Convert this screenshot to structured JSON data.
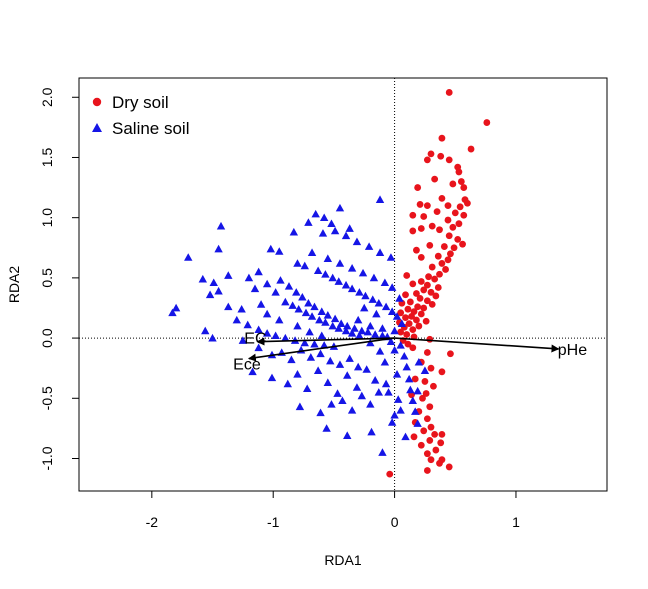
{
  "chart_data": {
    "type": "scatter",
    "xlabel": "RDA1",
    "ylabel": "RDA2",
    "xlim": [
      -2.6,
      1.75
    ],
    "ylim": [
      -1.27,
      2.16
    ],
    "xticks": [
      -2,
      -1,
      0,
      1
    ],
    "yticks": [
      -1.0,
      -0.5,
      0.0,
      0.5,
      1.0,
      1.5,
      2.0
    ],
    "xtick_labels": [
      "-2",
      "-1",
      "0",
      "1"
    ],
    "ytick_labels": [
      "-1.0",
      "-0.5",
      "0.0",
      "0.5",
      "1.0",
      "1.5",
      "2.0"
    ],
    "reference_lines": {
      "x": 0,
      "y": 0,
      "style": "dotted"
    },
    "legend": {
      "position": "top-left",
      "entries": [
        {
          "label": "Dry soil",
          "marker": "circle",
          "color": "#e8141c"
        },
        {
          "label": "Saline soil",
          "marker": "triangle",
          "color": "#1515e6"
        }
      ]
    },
    "series": [
      {
        "name": "Dry soil",
        "marker": "circle",
        "color": "#e8141c",
        "points": [
          [
            0.45,
            2.04
          ],
          [
            0.76,
            1.79
          ],
          [
            0.39,
            1.66
          ],
          [
            0.63,
            1.57
          ],
          [
            0.3,
            1.53
          ],
          [
            0.38,
            1.51
          ],
          [
            0.27,
            1.48
          ],
          [
            0.45,
            1.48
          ],
          [
            0.52,
            1.42
          ],
          [
            0.53,
            1.38
          ],
          [
            0.33,
            1.32
          ],
          [
            0.55,
            1.3
          ],
          [
            0.48,
            1.28
          ],
          [
            0.57,
            1.25
          ],
          [
            0.19,
            1.25
          ],
          [
            0.39,
            1.16
          ],
          [
            0.58,
            1.15
          ],
          [
            0.6,
            1.12
          ],
          [
            0.21,
            1.11
          ],
          [
            0.27,
            1.1
          ],
          [
            0.44,
            1.1
          ],
          [
            0.54,
            1.09
          ],
          [
            0.35,
            1.05
          ],
          [
            0.5,
            1.04
          ],
          [
            0.57,
            1.02
          ],
          [
            0.15,
            1.02
          ],
          [
            0.24,
            1.01
          ],
          [
            0.44,
            0.98
          ],
          [
            0.53,
            0.95
          ],
          [
            0.31,
            0.93
          ],
          [
            0.48,
            0.92
          ],
          [
            0.22,
            0.91
          ],
          [
            0.37,
            0.9
          ],
          [
            0.15,
            0.89
          ],
          [
            0.45,
            0.85
          ],
          [
            0.52,
            0.82
          ],
          [
            0.56,
            0.78
          ],
          [
            0.29,
            0.77
          ],
          [
            0.41,
            0.76
          ],
          [
            0.49,
            0.75
          ],
          [
            0.18,
            0.73
          ],
          [
            0.46,
            0.7
          ],
          [
            0.36,
            0.68
          ],
          [
            0.22,
            0.67
          ],
          [
            0.44,
            0.65
          ],
          [
            0.39,
            0.62
          ],
          [
            0.31,
            0.59
          ],
          [
            0.42,
            0.57
          ],
          [
            0.37,
            0.53
          ],
          [
            0.28,
            0.51
          ],
          [
            0.33,
            0.49
          ],
          [
            0.22,
            0.47
          ],
          [
            0.15,
            0.45
          ],
          [
            0.27,
            0.44
          ],
          [
            0.36,
            0.42
          ],
          [
            0.24,
            0.4
          ],
          [
            0.3,
            0.38
          ],
          [
            0.18,
            0.37
          ],
          [
            0.09,
            0.36
          ],
          [
            0.34,
            0.35
          ],
          [
            0.21,
            0.33
          ],
          [
            0.27,
            0.31
          ],
          [
            0.13,
            0.3
          ],
          [
            0.06,
            0.29
          ],
          [
            0.31,
            0.28
          ],
          [
            0.19,
            0.26
          ],
          [
            0.24,
            0.25
          ],
          [
            0.11,
            0.24
          ],
          [
            0.16,
            0.22
          ],
          [
            0.05,
            0.21
          ],
          [
            0.22,
            0.2
          ],
          [
            0.14,
            0.18
          ],
          [
            0.09,
            0.17
          ],
          [
            0.18,
            0.15
          ],
          [
            0.26,
            0.14
          ],
          [
            0.04,
            0.13
          ],
          [
            0.12,
            0.12
          ],
          [
            0.2,
            0.1
          ],
          [
            0.08,
            0.09
          ],
          [
            0.15,
            0.07
          ],
          [
            0.05,
            0.05
          ],
          [
            0.1,
            0.03
          ],
          [
            0.16,
            0.01
          ],
          [
            0.07,
            -0.02
          ],
          [
            0.11,
            -0.05
          ],
          [
            0.15,
            -0.08
          ],
          [
            0.27,
            -0.12
          ],
          [
            0.46,
            -0.13
          ],
          [
            0.22,
            -0.2
          ],
          [
            0.3,
            -0.25
          ],
          [
            0.39,
            -0.28
          ],
          [
            0.17,
            -0.34
          ],
          [
            0.25,
            -0.36
          ],
          [
            0.32,
            -0.4
          ],
          [
            0.14,
            -0.47
          ],
          [
            0.23,
            -0.5
          ],
          [
            0.29,
            -0.57
          ],
          [
            0.2,
            -0.61
          ],
          [
            0.27,
            -0.67
          ],
          [
            0.17,
            -0.7
          ],
          [
            0.3,
            -0.74
          ],
          [
            0.24,
            -0.77
          ],
          [
            0.33,
            -0.8
          ],
          [
            0.16,
            -0.82
          ],
          [
            0.29,
            -0.85
          ],
          [
            0.38,
            -0.87
          ],
          [
            0.22,
            -0.89
          ],
          [
            0.34,
            -0.93
          ],
          [
            0.27,
            -0.96
          ],
          [
            0.39,
            -1.01
          ],
          [
            0.37,
            -1.04
          ],
          [
            0.45,
            -1.07
          ],
          [
            0.3,
            -1.01
          ],
          [
            0.27,
            -1.1
          ],
          [
            -0.04,
            -1.13
          ],
          [
            0.39,
            -0.8
          ],
          [
            0.26,
            -0.46
          ],
          [
            0.29,
            -0.01
          ],
          [
            0.1,
            0.52
          ]
        ]
      },
      {
        "name": "Saline soil",
        "marker": "triangle",
        "color": "#1515e6",
        "points": [
          [
            -1.7,
            0.67
          ],
          [
            -1.43,
            0.93
          ],
          [
            -1.8,
            0.25
          ],
          [
            -1.83,
            0.21
          ],
          [
            -1.58,
            0.49
          ],
          [
            -1.49,
            0.46
          ],
          [
            -1.52,
            0.36
          ],
          [
            -1.37,
            0.52
          ],
          [
            -1.45,
            0.39
          ],
          [
            -1.37,
            0.26
          ],
          [
            -1.26,
            0.24
          ],
          [
            -1.56,
            0.06
          ],
          [
            -1.5,
            0.0
          ],
          [
            -1.45,
            0.74
          ],
          [
            -1.2,
            0.5
          ],
          [
            -1.15,
            0.41
          ],
          [
            -1.12,
            0.55
          ],
          [
            -1.05,
            0.45
          ],
          [
            -0.98,
            0.38
          ],
          [
            -0.94,
            0.48
          ],
          [
            -0.87,
            0.43
          ],
          [
            -0.81,
            0.38
          ],
          [
            -0.76,
            0.34
          ],
          [
            -0.71,
            0.29
          ],
          [
            -0.66,
            0.26
          ],
          [
            -0.6,
            0.22
          ],
          [
            -0.55,
            0.19
          ],
          [
            -0.49,
            0.16
          ],
          [
            -0.44,
            0.12
          ],
          [
            -0.39,
            0.1
          ],
          [
            -0.33,
            0.08
          ],
          [
            -0.27,
            0.06
          ],
          [
            -0.22,
            0.05
          ],
          [
            -0.16,
            0.03
          ],
          [
            -0.1,
            0.02
          ],
          [
            -0.06,
            0.01
          ],
          [
            -1.02,
            0.74
          ],
          [
            -0.95,
            0.72
          ],
          [
            -0.83,
            0.88
          ],
          [
            -0.71,
            0.96
          ],
          [
            -0.68,
            0.71
          ],
          [
            -0.59,
            0.87
          ],
          [
            -0.55,
            0.66
          ],
          [
            -0.49,
            0.89
          ],
          [
            -0.45,
            0.62
          ],
          [
            -0.4,
            0.85
          ],
          [
            -0.35,
            0.58
          ],
          [
            -0.31,
            0.8
          ],
          [
            -0.26,
            0.54
          ],
          [
            -0.21,
            0.76
          ],
          [
            -0.17,
            0.5
          ],
          [
            -0.12,
            0.71
          ],
          [
            -0.08,
            0.46
          ],
          [
            -0.03,
            0.67
          ],
          [
            -0.65,
            1.03
          ],
          [
            -0.58,
            1.0
          ],
          [
            -0.52,
            0.95
          ],
          [
            -0.45,
            1.08
          ],
          [
            -0.37,
            0.91
          ],
          [
            -0.12,
            1.15
          ],
          [
            -0.8,
            0.62
          ],
          [
            -0.74,
            0.6
          ],
          [
            -0.63,
            0.56
          ],
          [
            -0.57,
            0.53
          ],
          [
            -0.51,
            0.5
          ],
          [
            -0.46,
            0.47
          ],
          [
            -0.4,
            0.44
          ],
          [
            -0.35,
            0.41
          ],
          [
            -0.29,
            0.38
          ],
          [
            -0.24,
            0.35
          ],
          [
            -0.18,
            0.32
          ],
          [
            -0.13,
            0.29
          ],
          [
            -0.07,
            0.26
          ],
          [
            -0.02,
            0.22
          ],
          [
            -0.02,
            0.42
          ],
          [
            0.04,
            0.33
          ],
          [
            0.02,
            0.18
          ],
          [
            0.06,
            0.12
          ],
          [
            -0.9,
            0.3
          ],
          [
            -0.84,
            0.27
          ],
          [
            -0.79,
            0.24
          ],
          [
            -0.73,
            0.21
          ],
          [
            -0.68,
            0.18
          ],
          [
            -0.62,
            0.15
          ],
          [
            -0.57,
            0.13
          ],
          [
            -0.51,
            0.1
          ],
          [
            -0.46,
            0.08
          ],
          [
            -0.4,
            0.06
          ],
          [
            -0.35,
            0.04
          ],
          [
            -0.29,
            0.02
          ],
          [
            -1.3,
            0.15
          ],
          [
            -1.21,
            0.11
          ],
          [
            -1.12,
            0.07
          ],
          [
            -1.05,
            0.04
          ],
          [
            -0.98,
            0.02
          ],
          [
            -0.9,
            0.0
          ],
          [
            -0.82,
            -0.02
          ],
          [
            -0.74,
            -0.04
          ],
          [
            -0.66,
            -0.05
          ],
          [
            -0.58,
            -0.06
          ],
          [
            -0.5,
            -0.07
          ],
          [
            -1.25,
            -0.02
          ],
          [
            -1.12,
            -0.08
          ],
          [
            -1.01,
            -0.14
          ],
          [
            -0.93,
            -0.12
          ],
          [
            -0.85,
            -0.18
          ],
          [
            -0.77,
            -0.1
          ],
          [
            -0.69,
            -0.16
          ],
          [
            -0.61,
            -0.13
          ],
          [
            -0.53,
            -0.19
          ],
          [
            -0.45,
            -0.22
          ],
          [
            -0.37,
            -0.17
          ],
          [
            -0.3,
            -0.24
          ],
          [
            -1.17,
            -0.28
          ],
          [
            -1.01,
            -0.33
          ],
          [
            -0.88,
            -0.38
          ],
          [
            -0.8,
            -0.3
          ],
          [
            -0.72,
            -0.42
          ],
          [
            -0.63,
            -0.27
          ],
          [
            -0.55,
            -0.37
          ],
          [
            -0.47,
            -0.46
          ],
          [
            -0.39,
            -0.31
          ],
          [
            -0.31,
            -0.41
          ],
          [
            -0.23,
            -0.26
          ],
          [
            -0.16,
            -0.35
          ],
          [
            -0.78,
            -0.57
          ],
          [
            -0.61,
            -0.62
          ],
          [
            -0.52,
            -0.55
          ],
          [
            -0.43,
            -0.52
          ],
          [
            -0.35,
            -0.6
          ],
          [
            -0.27,
            -0.48
          ],
          [
            -0.2,
            -0.55
          ],
          [
            -0.13,
            -0.45
          ],
          [
            -0.07,
            -0.38
          ],
          [
            -0.56,
            -0.75
          ],
          [
            -0.39,
            -0.81
          ],
          [
            -0.19,
            -0.78
          ],
          [
            -0.02,
            -0.7
          ],
          [
            -0.05,
            -0.45
          ],
          [
            0.02,
            -0.3
          ],
          [
            -0.08,
            -0.2
          ],
          [
            0.0,
            -0.1
          ],
          [
            0.05,
            -0.06
          ],
          [
            -0.12,
            -0.11
          ],
          [
            -0.2,
            -0.04
          ],
          [
            -0.03,
            -0.03
          ],
          [
            0.08,
            -0.15
          ],
          [
            0.1,
            -0.24
          ],
          [
            0.12,
            -0.34
          ],
          [
            0.13,
            -0.43
          ],
          [
            0.15,
            -0.52
          ],
          [
            0.17,
            -0.61
          ],
          [
            0.19,
            -0.71
          ],
          [
            0.09,
            -0.82
          ],
          [
            0.05,
            -0.6
          ],
          [
            0.2,
            -0.2
          ],
          [
            0.25,
            -0.27
          ],
          [
            0.19,
            -0.44
          ],
          [
            0.03,
            -0.51
          ],
          [
            0.0,
            -0.64
          ],
          [
            -0.1,
            -0.95
          ],
          [
            -0.8,
            0.1
          ],
          [
            -0.7,
            0.05
          ],
          [
            -0.6,
            0.02
          ],
          [
            -0.95,
            0.15
          ],
          [
            -1.05,
            0.2
          ],
          [
            -1.1,
            0.28
          ],
          [
            -0.3,
            0.15
          ],
          [
            -0.2,
            0.1
          ],
          [
            -0.1,
            0.08
          ],
          [
            0.0,
            0.06
          ],
          [
            -0.25,
            0.25
          ],
          [
            -0.15,
            0.2
          ]
        ]
      }
    ],
    "biplot_arrows": [
      {
        "label": "EC",
        "x": -1.13,
        "y": -0.03
      },
      {
        "label": "Ece",
        "x": -1.2,
        "y": -0.17
      },
      {
        "label": "pHe",
        "x": 1.35,
        "y": -0.09
      }
    ]
  }
}
